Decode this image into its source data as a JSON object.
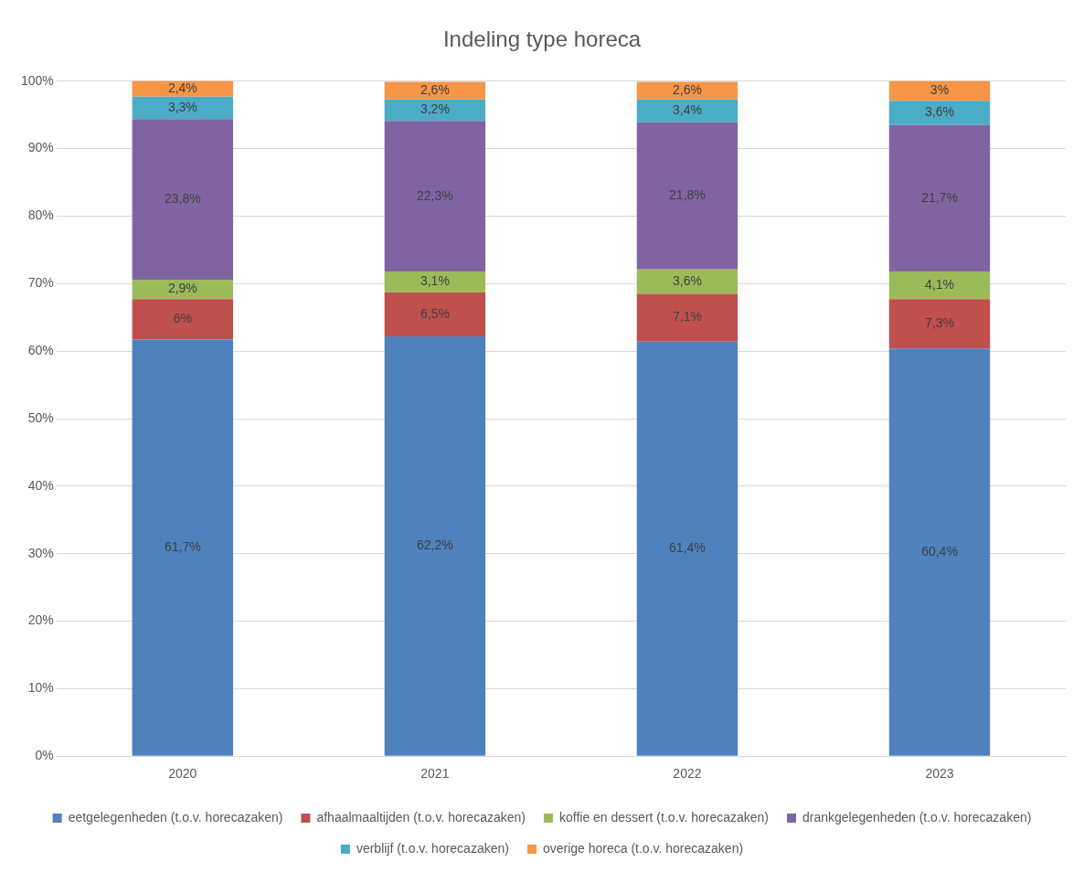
{
  "chart_data": {
    "type": "bar",
    "title": "Indeling type horeca",
    "stacked": true,
    "categories": [
      "2020",
      "2021",
      "2022",
      "2023"
    ],
    "series": [
      {
        "name": "eetgelegenheden (t.o.v. horecazaken)",
        "color": "#4f81bd",
        "values": [
          61.7,
          62.2,
          61.4,
          60.4
        ],
        "value_labels": [
          "61,7%",
          "62,2%",
          "61,4%",
          "60,4%"
        ]
      },
      {
        "name": "afhaalmaaltijden (t.o.v. horecazaken)",
        "color": "#c0504d",
        "values": [
          6,
          6.5,
          7.1,
          7.3
        ],
        "value_labels": [
          "6%",
          "6,5%",
          "7,1%",
          "7,3%"
        ]
      },
      {
        "name": "koffie en dessert (t.o.v. horecazaken)",
        "color": "#9bbb59",
        "values": [
          2.9,
          3.1,
          3.6,
          4.1
        ],
        "value_labels": [
          "2,9%",
          "3,1%",
          "3,6%",
          "4,1%"
        ]
      },
      {
        "name": "drankgelegenheden (t.o.v. horecazaken)",
        "color": "#8064a2",
        "values": [
          23.8,
          22.3,
          21.8,
          21.7
        ],
        "value_labels": [
          "23,8%",
          "22,3%",
          "21,8%",
          "21,7%"
        ]
      },
      {
        "name": "verblijf (t.o.v. horecazaken)",
        "color": "#4bacc6",
        "values": [
          3.3,
          3.2,
          3.4,
          3.6
        ],
        "value_labels": [
          "3,3%",
          "3,2%",
          "3,4%",
          "3,6%"
        ]
      },
      {
        "name": "overige horeca (t.o.v. horecazaken)",
        "color": "#f79646",
        "values": [
          2.4,
          2.6,
          2.6,
          3
        ],
        "value_labels": [
          "2,4%",
          "2,6%",
          "2,6%",
          "3%"
        ]
      }
    ],
    "ylim": [
      0,
      100
    ],
    "yticks": [
      {
        "value": 0,
        "label": "0%"
      },
      {
        "value": 10,
        "label": "10%"
      },
      {
        "value": 20,
        "label": "20%"
      },
      {
        "value": 30,
        "label": "30%"
      },
      {
        "value": 40,
        "label": "40%"
      },
      {
        "value": 50,
        "label": "50%"
      },
      {
        "value": 60,
        "label": "60%"
      },
      {
        "value": 70,
        "label": "70%"
      },
      {
        "value": 80,
        "label": "80%"
      },
      {
        "value": 90,
        "label": "90%"
      },
      {
        "value": 100,
        "label": "100%"
      }
    ],
    "grid": "y",
    "legend": "bottom"
  }
}
